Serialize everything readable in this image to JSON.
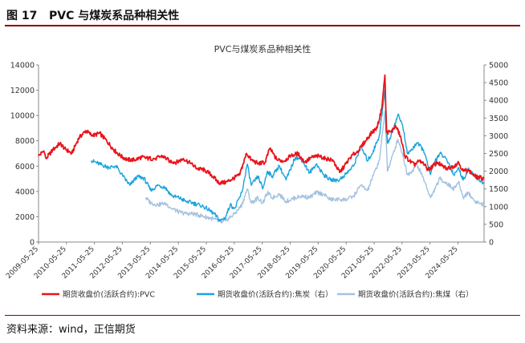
{
  "figure": {
    "label": "图 17",
    "title": "PVC 与煤炭系品种相关性",
    "source": "资料来源：wind，正信期货"
  },
  "colors": {
    "header_rule": "#8b0000",
    "pvc": "#e8141b",
    "coke": "#1aa3dc",
    "coal": "#a4c2e0"
  },
  "chart_data": {
    "type": "line",
    "title": "PVC与煤炭系品种相关性",
    "x_tick_labels": [
      "2009-05-25",
      "2010-05-25",
      "2011-05-25",
      "2012-05-25",
      "2013-05-25",
      "2014-05-25",
      "2015-05-25",
      "2016-05-25",
      "2017-05-25",
      "2018-05-25",
      "2019-05-25",
      "2020-05-25",
      "2021-05-25",
      "2022-05-25",
      "2023-05-25",
      "2024-05-25"
    ],
    "x_range": [
      "2009-05-25",
      "2025-04-30"
    ],
    "y_left": {
      "min": 0,
      "max": 14000,
      "ticks": [
        0,
        2000,
        4000,
        6000,
        8000,
        10000,
        12000,
        14000
      ]
    },
    "y_right": {
      "min": 0,
      "max": 5000,
      "ticks": [
        0,
        500,
        1000,
        1500,
        2000,
        2500,
        3000,
        3500,
        4000,
        4500,
        5000
      ]
    },
    "grid": false,
    "legend_position": "bottom",
    "series": [
      {
        "name": "期货收盘价(活跃合约):PVC",
        "axis": "left",
        "color": "#e8141b",
        "points": [
          [
            "2009-05-25",
            6800
          ],
          [
            "2009-08-01",
            7200
          ],
          [
            "2009-09-01",
            6600
          ],
          [
            "2009-12-01",
            7300
          ],
          [
            "2010-03-01",
            7800
          ],
          [
            "2010-05-01",
            7400
          ],
          [
            "2010-08-01",
            7000
          ],
          [
            "2010-11-01",
            8200
          ],
          [
            "2011-02-01",
            8800
          ],
          [
            "2011-05-01",
            8400
          ],
          [
            "2011-08-01",
            8600
          ],
          [
            "2011-11-01",
            8000
          ],
          [
            "2012-02-01",
            7300
          ],
          [
            "2012-05-01",
            6800
          ],
          [
            "2012-08-01",
            6500
          ],
          [
            "2012-11-01",
            6500
          ],
          [
            "2013-02-01",
            6700
          ],
          [
            "2013-05-01",
            6600
          ],
          [
            "2013-08-01",
            6600
          ],
          [
            "2013-11-01",
            6800
          ],
          [
            "2014-02-01",
            6400
          ],
          [
            "2014-05-01",
            6300
          ],
          [
            "2014-08-01",
            6600
          ],
          [
            "2014-11-01",
            6200
          ],
          [
            "2015-02-01",
            5800
          ],
          [
            "2015-05-01",
            5700
          ],
          [
            "2015-08-01",
            5300
          ],
          [
            "2015-11-01",
            4700
          ],
          [
            "2016-02-01",
            4700
          ],
          [
            "2016-05-01",
            5000
          ],
          [
            "2016-08-01",
            5300
          ],
          [
            "2016-11-01",
            7000
          ],
          [
            "2017-01-01",
            6500
          ],
          [
            "2017-04-01",
            6200
          ],
          [
            "2017-07-01",
            6300
          ],
          [
            "2017-09-01",
            7400
          ],
          [
            "2017-12-01",
            6500
          ],
          [
            "2018-03-01",
            6400
          ],
          [
            "2018-06-01",
            6800
          ],
          [
            "2018-09-01",
            7000
          ],
          [
            "2018-12-01",
            6300
          ],
          [
            "2019-03-01",
            6700
          ],
          [
            "2019-06-01",
            6800
          ],
          [
            "2019-09-01",
            6600
          ],
          [
            "2019-12-01",
            6500
          ],
          [
            "2020-03-01",
            5500
          ],
          [
            "2020-05-01",
            6000
          ],
          [
            "2020-08-01",
            6800
          ],
          [
            "2020-11-01",
            7200
          ],
          [
            "2021-02-01",
            8000
          ],
          [
            "2021-05-01",
            8700
          ],
          [
            "2021-07-01",
            9000
          ],
          [
            "2021-09-01",
            10500
          ],
          [
            "2021-10-13",
            13200
          ],
          [
            "2021-11-01",
            8700
          ],
          [
            "2022-01-01",
            8700
          ],
          [
            "2022-03-01",
            9200
          ],
          [
            "2022-05-01",
            8400
          ],
          [
            "2022-07-01",
            6800
          ],
          [
            "2022-09-01",
            6400
          ],
          [
            "2022-11-01",
            6100
          ],
          [
            "2023-01-01",
            6400
          ],
          [
            "2023-03-01",
            6200
          ],
          [
            "2023-05-01",
            5700
          ],
          [
            "2023-07-01",
            6000
          ],
          [
            "2023-09-01",
            6300
          ],
          [
            "2023-11-01",
            6000
          ],
          [
            "2024-01-01",
            5800
          ],
          [
            "2024-04-01",
            6000
          ],
          [
            "2024-06-01",
            6300
          ],
          [
            "2024-08-01",
            5600
          ],
          [
            "2024-10-01",
            5700
          ],
          [
            "2025-01-01",
            5200
          ],
          [
            "2025-04-30",
            5000
          ]
        ]
      },
      {
        "name": "期货收盘价(活跃合约):焦炭（右）",
        "axis": "right",
        "color": "#1aa3dc",
        "points": [
          [
            "2011-04-15",
            2300
          ],
          [
            "2011-08-01",
            2200
          ],
          [
            "2011-12-01",
            2100
          ],
          [
            "2012-03-01",
            2150
          ],
          [
            "2012-06-01",
            1850
          ],
          [
            "2012-09-01",
            1600
          ],
          [
            "2012-12-01",
            1850
          ],
          [
            "2013-03-01",
            1800
          ],
          [
            "2013-06-01",
            1450
          ],
          [
            "2013-09-01",
            1600
          ],
          [
            "2013-12-01",
            1550
          ],
          [
            "2014-03-01",
            1300
          ],
          [
            "2014-06-01",
            1250
          ],
          [
            "2014-09-01",
            1150
          ],
          [
            "2014-12-01",
            1100
          ],
          [
            "2015-03-01",
            1050
          ],
          [
            "2015-06-01",
            950
          ],
          [
            "2015-09-01",
            800
          ],
          [
            "2015-11-25",
            600
          ],
          [
            "2016-02-01",
            700
          ],
          [
            "2016-04-01",
            1050
          ],
          [
            "2016-06-01",
            950
          ],
          [
            "2016-09-01",
            1400
          ],
          [
            "2016-11-10",
            2200
          ],
          [
            "2017-01-01",
            1600
          ],
          [
            "2017-04-01",
            1850
          ],
          [
            "2017-06-01",
            1500
          ],
          [
            "2017-08-01",
            2000
          ],
          [
            "2017-10-01",
            1850
          ],
          [
            "2018-01-01",
            2150
          ],
          [
            "2018-04-01",
            1750
          ],
          [
            "2018-08-01",
            2400
          ],
          [
            "2018-11-01",
            2300
          ],
          [
            "2019-02-01",
            1950
          ],
          [
            "2019-05-01",
            2200
          ],
          [
            "2019-08-01",
            1900
          ],
          [
            "2019-11-01",
            1750
          ],
          [
            "2020-03-01",
            1750
          ],
          [
            "2020-06-01",
            1950
          ],
          [
            "2020-09-01",
            2150
          ],
          [
            "2020-12-01",
            2700
          ],
          [
            "2021-03-01",
            2300
          ],
          [
            "2021-05-01",
            2500
          ],
          [
            "2021-08-01",
            3000
          ],
          [
            "2021-10-15",
            4300
          ],
          [
            "2021-11-15",
            2800
          ],
          [
            "2022-01-01",
            3000
          ],
          [
            "2022-04-01",
            3600
          ],
          [
            "2022-06-01",
            3300
          ],
          [
            "2022-08-01",
            2500
          ],
          [
            "2022-10-01",
            2600
          ],
          [
            "2022-12-01",
            2800
          ],
          [
            "2023-03-01",
            2600
          ],
          [
            "2023-06-01",
            1900
          ],
          [
            "2023-08-01",
            2300
          ],
          [
            "2023-10-01",
            2500
          ],
          [
            "2023-12-01",
            2400
          ],
          [
            "2024-02-01",
            2200
          ],
          [
            "2024-04-01",
            1900
          ],
          [
            "2024-06-01",
            2100
          ],
          [
            "2024-08-01",
            1750
          ],
          [
            "2024-10-01",
            2050
          ],
          [
            "2025-01-01",
            1850
          ],
          [
            "2025-04-30",
            1650
          ]
        ]
      },
      {
        "name": "期货收盘价(活跃合约):焦煤（右）",
        "axis": "right",
        "color": "#a4c2e0",
        "points": [
          [
            "2013-03-22",
            1250
          ],
          [
            "2013-06-01",
            1100
          ],
          [
            "2013-09-01",
            1050
          ],
          [
            "2013-12-01",
            1100
          ],
          [
            "2014-03-01",
            950
          ],
          [
            "2014-06-01",
            850
          ],
          [
            "2014-09-01",
            800
          ],
          [
            "2014-12-01",
            800
          ],
          [
            "2015-03-01",
            750
          ],
          [
            "2015-06-01",
            700
          ],
          [
            "2015-09-01",
            650
          ],
          [
            "2015-12-01",
            550
          ],
          [
            "2016-02-01",
            600
          ],
          [
            "2016-06-01",
            800
          ],
          [
            "2016-09-01",
            1050
          ],
          [
            "2016-11-10",
            1500
          ],
          [
            "2017-01-01",
            1100
          ],
          [
            "2017-04-01",
            1250
          ],
          [
            "2017-06-01",
            1100
          ],
          [
            "2017-08-01",
            1400
          ],
          [
            "2017-10-01",
            1250
          ],
          [
            "2018-01-01",
            1350
          ],
          [
            "2018-04-01",
            1150
          ],
          [
            "2018-08-01",
            1250
          ],
          [
            "2018-11-01",
            1300
          ],
          [
            "2019-02-01",
            1250
          ],
          [
            "2019-05-01",
            1400
          ],
          [
            "2019-08-01",
            1350
          ],
          [
            "2019-11-01",
            1200
          ],
          [
            "2020-03-01",
            1200
          ],
          [
            "2020-06-01",
            1200
          ],
          [
            "2020-09-01",
            1300
          ],
          [
            "2020-12-01",
            1600
          ],
          [
            "2021-03-01",
            1450
          ],
          [
            "2021-05-01",
            1800
          ],
          [
            "2021-08-01",
            2300
          ],
          [
            "2021-10-15",
            3700
          ],
          [
            "2021-11-15",
            2000
          ],
          [
            "2022-01-01",
            2300
          ],
          [
            "2022-04-01",
            2900
          ],
          [
            "2022-06-01",
            2500
          ],
          [
            "2022-08-01",
            1900
          ],
          [
            "2022-10-01",
            2000
          ],
          [
            "2022-12-01",
            2200
          ],
          [
            "2023-03-01",
            1800
          ],
          [
            "2023-06-01",
            1250
          ],
          [
            "2023-08-01",
            1500
          ],
          [
            "2023-10-01",
            1800
          ],
          [
            "2023-12-01",
            1700
          ],
          [
            "2024-02-01",
            1600
          ],
          [
            "2024-04-01",
            1500
          ],
          [
            "2024-06-01",
            1700
          ],
          [
            "2024-08-01",
            1250
          ],
          [
            "2024-10-01",
            1400
          ],
          [
            "2025-01-01",
            1150
          ],
          [
            "2025-04-30",
            1050
          ]
        ]
      }
    ]
  }
}
